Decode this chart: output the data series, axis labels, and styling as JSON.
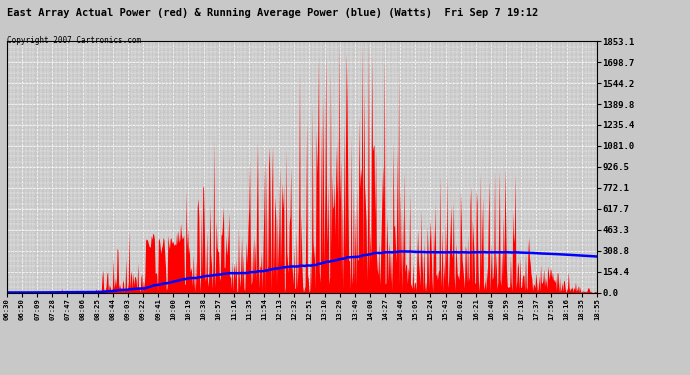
{
  "title": "East Array Actual Power (red) & Running Average Power (blue) (Watts)  Fri Sep 7 19:12",
  "copyright": "Copyright 2007 Cartronics.com",
  "ylabel_right": [
    "1853.1",
    "1698.7",
    "1544.2",
    "1389.8",
    "1235.4",
    "1081.0",
    "926.5",
    "772.1",
    "617.7",
    "463.3",
    "308.8",
    "154.4",
    "0.0"
  ],
  "yticks_vals": [
    1853.1,
    1698.7,
    1544.2,
    1389.8,
    1235.4,
    1081.0,
    926.5,
    772.1,
    617.7,
    463.3,
    308.8,
    154.4,
    0.0
  ],
  "ymax": 1853.1,
  "ymin": 0.0,
  "bg_color": "#c8c8c8",
  "plot_bg_color": "#c8c8c8",
  "grid_color": "#ffffff",
  "bar_color": "#ff0000",
  "line_color": "#0000ff",
  "xtick_labels": [
    "06:30",
    "06:50",
    "07:09",
    "07:28",
    "07:47",
    "08:06",
    "08:25",
    "08:44",
    "09:03",
    "09:22",
    "09:41",
    "10:00",
    "10:19",
    "10:38",
    "10:57",
    "11:16",
    "11:35",
    "11:54",
    "12:13",
    "12:32",
    "12:51",
    "13:10",
    "13:29",
    "13:49",
    "14:08",
    "14:27",
    "14:46",
    "15:05",
    "15:24",
    "15:43",
    "16:02",
    "16:21",
    "16:40",
    "16:59",
    "17:18",
    "17:37",
    "17:56",
    "18:16",
    "18:35",
    "18:55"
  ]
}
